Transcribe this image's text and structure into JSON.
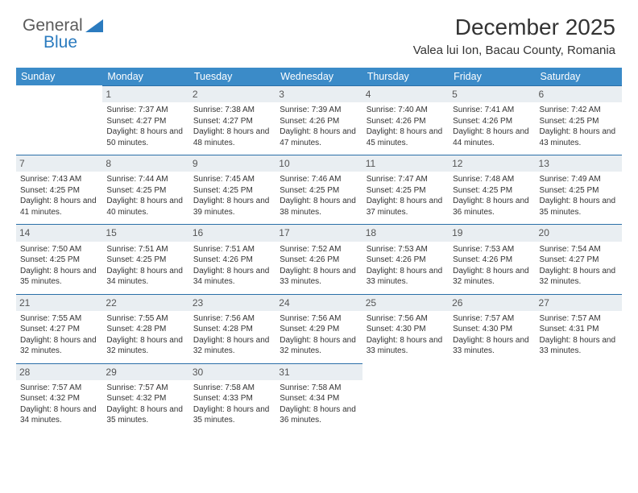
{
  "logo": {
    "text1": "General",
    "text2": "Blue"
  },
  "title": "December 2025",
  "location": "Valea lui Ion, Bacau County, Romania",
  "colors": {
    "header_bg": "#3b8bc8",
    "header_text": "#ffffff",
    "daynum_bg": "#e9eef2",
    "daynum_border": "#2b6fa8",
    "logo_gray": "#5a5a5a",
    "logo_blue": "#2b7bbf",
    "background": "#ffffff"
  },
  "weekdays": [
    "Sunday",
    "Monday",
    "Tuesday",
    "Wednesday",
    "Thursday",
    "Friday",
    "Saturday"
  ],
  "weeks": [
    [
      null,
      {
        "n": "1",
        "sr": "7:37 AM",
        "ss": "4:27 PM",
        "dl": "8 hours and 50 minutes."
      },
      {
        "n": "2",
        "sr": "7:38 AM",
        "ss": "4:27 PM",
        "dl": "8 hours and 48 minutes."
      },
      {
        "n": "3",
        "sr": "7:39 AM",
        "ss": "4:26 PM",
        "dl": "8 hours and 47 minutes."
      },
      {
        "n": "4",
        "sr": "7:40 AM",
        "ss": "4:26 PM",
        "dl": "8 hours and 45 minutes."
      },
      {
        "n": "5",
        "sr": "7:41 AM",
        "ss": "4:26 PM",
        "dl": "8 hours and 44 minutes."
      },
      {
        "n": "6",
        "sr": "7:42 AM",
        "ss": "4:25 PM",
        "dl": "8 hours and 43 minutes."
      }
    ],
    [
      {
        "n": "7",
        "sr": "7:43 AM",
        "ss": "4:25 PM",
        "dl": "8 hours and 41 minutes."
      },
      {
        "n": "8",
        "sr": "7:44 AM",
        "ss": "4:25 PM",
        "dl": "8 hours and 40 minutes."
      },
      {
        "n": "9",
        "sr": "7:45 AM",
        "ss": "4:25 PM",
        "dl": "8 hours and 39 minutes."
      },
      {
        "n": "10",
        "sr": "7:46 AM",
        "ss": "4:25 PM",
        "dl": "8 hours and 38 minutes."
      },
      {
        "n": "11",
        "sr": "7:47 AM",
        "ss": "4:25 PM",
        "dl": "8 hours and 37 minutes."
      },
      {
        "n": "12",
        "sr": "7:48 AM",
        "ss": "4:25 PM",
        "dl": "8 hours and 36 minutes."
      },
      {
        "n": "13",
        "sr": "7:49 AM",
        "ss": "4:25 PM",
        "dl": "8 hours and 35 minutes."
      }
    ],
    [
      {
        "n": "14",
        "sr": "7:50 AM",
        "ss": "4:25 PM",
        "dl": "8 hours and 35 minutes."
      },
      {
        "n": "15",
        "sr": "7:51 AM",
        "ss": "4:25 PM",
        "dl": "8 hours and 34 minutes."
      },
      {
        "n": "16",
        "sr": "7:51 AM",
        "ss": "4:26 PM",
        "dl": "8 hours and 34 minutes."
      },
      {
        "n": "17",
        "sr": "7:52 AM",
        "ss": "4:26 PM",
        "dl": "8 hours and 33 minutes."
      },
      {
        "n": "18",
        "sr": "7:53 AM",
        "ss": "4:26 PM",
        "dl": "8 hours and 33 minutes."
      },
      {
        "n": "19",
        "sr": "7:53 AM",
        "ss": "4:26 PM",
        "dl": "8 hours and 32 minutes."
      },
      {
        "n": "20",
        "sr": "7:54 AM",
        "ss": "4:27 PM",
        "dl": "8 hours and 32 minutes."
      }
    ],
    [
      {
        "n": "21",
        "sr": "7:55 AM",
        "ss": "4:27 PM",
        "dl": "8 hours and 32 minutes."
      },
      {
        "n": "22",
        "sr": "7:55 AM",
        "ss": "4:28 PM",
        "dl": "8 hours and 32 minutes."
      },
      {
        "n": "23",
        "sr": "7:56 AM",
        "ss": "4:28 PM",
        "dl": "8 hours and 32 minutes."
      },
      {
        "n": "24",
        "sr": "7:56 AM",
        "ss": "4:29 PM",
        "dl": "8 hours and 32 minutes."
      },
      {
        "n": "25",
        "sr": "7:56 AM",
        "ss": "4:30 PM",
        "dl": "8 hours and 33 minutes."
      },
      {
        "n": "26",
        "sr": "7:57 AM",
        "ss": "4:30 PM",
        "dl": "8 hours and 33 minutes."
      },
      {
        "n": "27",
        "sr": "7:57 AM",
        "ss": "4:31 PM",
        "dl": "8 hours and 33 minutes."
      }
    ],
    [
      {
        "n": "28",
        "sr": "7:57 AM",
        "ss": "4:32 PM",
        "dl": "8 hours and 34 minutes."
      },
      {
        "n": "29",
        "sr": "7:57 AM",
        "ss": "4:32 PM",
        "dl": "8 hours and 35 minutes."
      },
      {
        "n": "30",
        "sr": "7:58 AM",
        "ss": "4:33 PM",
        "dl": "8 hours and 35 minutes."
      },
      {
        "n": "31",
        "sr": "7:58 AM",
        "ss": "4:34 PM",
        "dl": "8 hours and 36 minutes."
      },
      null,
      null,
      null
    ]
  ],
  "labels": {
    "sunrise": "Sunrise:",
    "sunset": "Sunset:",
    "daylight": "Daylight:"
  }
}
